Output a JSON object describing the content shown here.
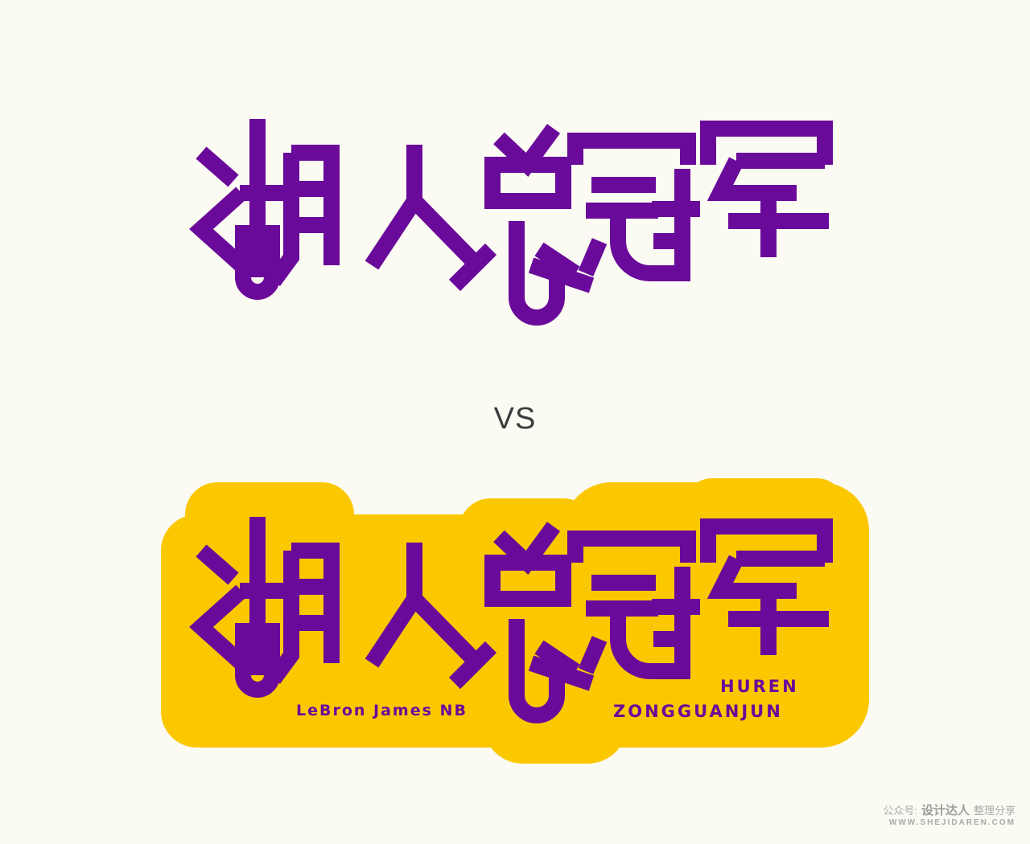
{
  "logo_text": "湖人总冠军",
  "separator": "VS",
  "subtitle_left": "LeBron James NB",
  "subtitle_right_line1": "HUREN",
  "subtitle_right_line2": "ZONGGUANJUN",
  "watermark": {
    "prefix": "公众号:",
    "brand": "设计达人",
    "suffix": "整理分享",
    "url": "WWW.SHEJIDAREN.COM"
  },
  "colors": {
    "background": "#fbfaf3",
    "stroke": "#6a0a9a",
    "badge": "#fbc800"
  }
}
